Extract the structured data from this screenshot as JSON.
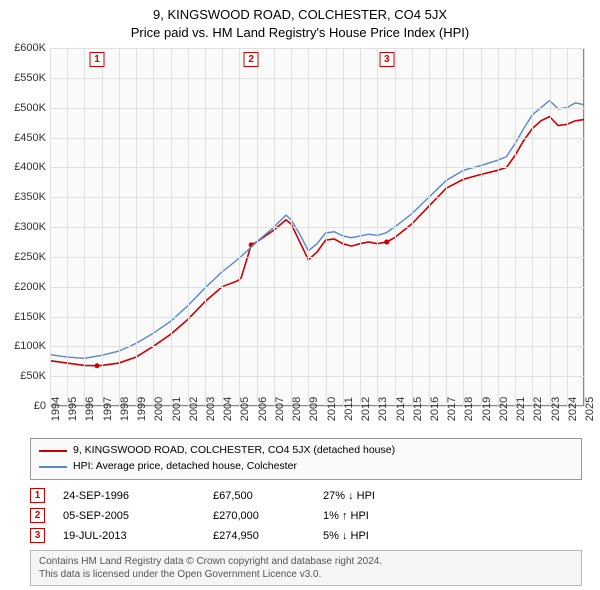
{
  "title": {
    "line1": "9, KINGSWOOD ROAD, COLCHESTER, CO4 5JX",
    "line2": "Price paid vs. HM Land Registry's House Price Index (HPI)",
    "fontsize": 13,
    "color": "#222222"
  },
  "chart": {
    "type": "line",
    "background_color": "#fafafa",
    "grid_color": "#e0e0e0",
    "axis_border_color": "#888888",
    "x": {
      "min": 1994,
      "max": 2025,
      "ticks": [
        1994,
        1995,
        1996,
        1997,
        1998,
        1999,
        2000,
        2001,
        2002,
        2003,
        2004,
        2005,
        2006,
        2007,
        2008,
        2009,
        2010,
        2011,
        2012,
        2013,
        2014,
        2015,
        2016,
        2017,
        2018,
        2019,
        2020,
        2021,
        2022,
        2023,
        2024,
        2025
      ],
      "label_fontsize": 11
    },
    "y": {
      "min": 0,
      "max": 600000,
      "ticks": [
        0,
        50000,
        100000,
        150000,
        200000,
        250000,
        300000,
        350000,
        400000,
        450000,
        500000,
        550000,
        600000
      ],
      "tick_labels": [
        "£0",
        "£50K",
        "£100K",
        "£150K",
        "£200K",
        "£250K",
        "£300K",
        "£350K",
        "£400K",
        "£450K",
        "£500K",
        "£550K",
        "£600K"
      ],
      "label_fontsize": 11
    },
    "series": [
      {
        "id": "price_paid",
        "label": "9, KINGSWOOD ROAD, COLCHESTER, CO4 5JX (detached house)",
        "color": "#cc0000",
        "line_width": 1.6,
        "points": [
          [
            1994.0,
            76000
          ],
          [
            1995.0,
            72000
          ],
          [
            1996.0,
            68000
          ],
          [
            1996.73,
            67500
          ],
          [
            1997.0,
            68000
          ],
          [
            1998.0,
            72000
          ],
          [
            1999.0,
            82000
          ],
          [
            2000.0,
            100000
          ],
          [
            2001.0,
            120000
          ],
          [
            2002.0,
            145000
          ],
          [
            2003.0,
            175000
          ],
          [
            2004.0,
            200000
          ],
          [
            2004.9,
            210000
          ],
          [
            2005.1,
            215000
          ],
          [
            2005.68,
            270000
          ],
          [
            2006.0,
            275000
          ],
          [
            2007.0,
            295000
          ],
          [
            2007.7,
            312000
          ],
          [
            2008.0,
            305000
          ],
          [
            2008.5,
            275000
          ],
          [
            2009.0,
            245000
          ],
          [
            2009.5,
            258000
          ],
          [
            2010.0,
            278000
          ],
          [
            2010.5,
            280000
          ],
          [
            2011.0,
            272000
          ],
          [
            2011.5,
            268000
          ],
          [
            2012.0,
            272000
          ],
          [
            2012.5,
            275000
          ],
          [
            2013.0,
            272000
          ],
          [
            2013.55,
            274950
          ],
          [
            2014.0,
            282000
          ],
          [
            2015.0,
            305000
          ],
          [
            2016.0,
            335000
          ],
          [
            2017.0,
            365000
          ],
          [
            2018.0,
            380000
          ],
          [
            2019.0,
            388000
          ],
          [
            2020.0,
            395000
          ],
          [
            2020.5,
            400000
          ],
          [
            2021.0,
            420000
          ],
          [
            2021.5,
            445000
          ],
          [
            2022.0,
            465000
          ],
          [
            2022.5,
            478000
          ],
          [
            2023.0,
            485000
          ],
          [
            2023.5,
            470000
          ],
          [
            2024.0,
            472000
          ],
          [
            2024.5,
            478000
          ],
          [
            2025.0,
            480000
          ]
        ],
        "marker_points": [
          {
            "x": 1996.73,
            "y": 67500
          },
          {
            "x": 2005.68,
            "y": 270000
          },
          {
            "x": 2013.55,
            "y": 274950
          }
        ],
        "marker_color": "#cc0000",
        "marker_size": 5
      },
      {
        "id": "hpi",
        "label": "HPI: Average price, detached house, Colchester",
        "color": "#5588cc",
        "line_width": 1.4,
        "points": [
          [
            1994.0,
            86000
          ],
          [
            1995.0,
            82000
          ],
          [
            1996.0,
            80000
          ],
          [
            1997.0,
            85000
          ],
          [
            1998.0,
            92000
          ],
          [
            1999.0,
            105000
          ],
          [
            2000.0,
            122000
          ],
          [
            2001.0,
            142000
          ],
          [
            2002.0,
            168000
          ],
          [
            2003.0,
            198000
          ],
          [
            2004.0,
            225000
          ],
          [
            2005.0,
            248000
          ],
          [
            2006.0,
            275000
          ],
          [
            2007.0,
            300000
          ],
          [
            2007.7,
            320000
          ],
          [
            2008.0,
            312000
          ],
          [
            2008.5,
            288000
          ],
          [
            2009.0,
            260000
          ],
          [
            2009.5,
            272000
          ],
          [
            2010.0,
            290000
          ],
          [
            2010.5,
            292000
          ],
          [
            2011.0,
            285000
          ],
          [
            2011.5,
            282000
          ],
          [
            2012.0,
            285000
          ],
          [
            2012.5,
            288000
          ],
          [
            2013.0,
            286000
          ],
          [
            2013.5,
            290000
          ],
          [
            2014.0,
            300000
          ],
          [
            2015.0,
            322000
          ],
          [
            2016.0,
            350000
          ],
          [
            2017.0,
            378000
          ],
          [
            2018.0,
            395000
          ],
          [
            2019.0,
            403000
          ],
          [
            2020.0,
            412000
          ],
          [
            2020.5,
            418000
          ],
          [
            2021.0,
            440000
          ],
          [
            2021.5,
            465000
          ],
          [
            2022.0,
            488000
          ],
          [
            2022.5,
            500000
          ],
          [
            2023.0,
            512000
          ],
          [
            2023.5,
            498000
          ],
          [
            2024.0,
            500000
          ],
          [
            2024.5,
            508000
          ],
          [
            2025.0,
            505000
          ]
        ]
      }
    ],
    "top_markers": [
      {
        "n": "1",
        "x": 1996.73
      },
      {
        "n": "2",
        "x": 2005.68
      },
      {
        "n": "3",
        "x": 2013.55
      }
    ],
    "marker_box": {
      "border_color": "#cc0000",
      "text_color": "#cc0000",
      "bg": "#ffffff",
      "size": 15,
      "fontsize": 10
    }
  },
  "legend": {
    "border_color": "#999999",
    "bg": "#fafafa",
    "fontsize": 10.5
  },
  "transactions": {
    "fontsize": 11,
    "rows": [
      {
        "n": "1",
        "date": "24-SEP-1996",
        "price": "£67,500",
        "hpi": "27% ↓ HPI"
      },
      {
        "n": "2",
        "date": "05-SEP-2005",
        "price": "£270,000",
        "hpi": "1% ↑ HPI"
      },
      {
        "n": "3",
        "date": "19-JUL-2013",
        "price": "£274,950",
        "hpi": "5% ↓ HPI"
      }
    ]
  },
  "footer": {
    "line1": "Contains HM Land Registry data © Crown copyright and database right 2024.",
    "line2": "This data is licensed under the Open Government Licence v3.0.",
    "fontsize": 10,
    "bg": "#f5f5f5",
    "border": "#bbbbbb",
    "color": "#555555"
  }
}
